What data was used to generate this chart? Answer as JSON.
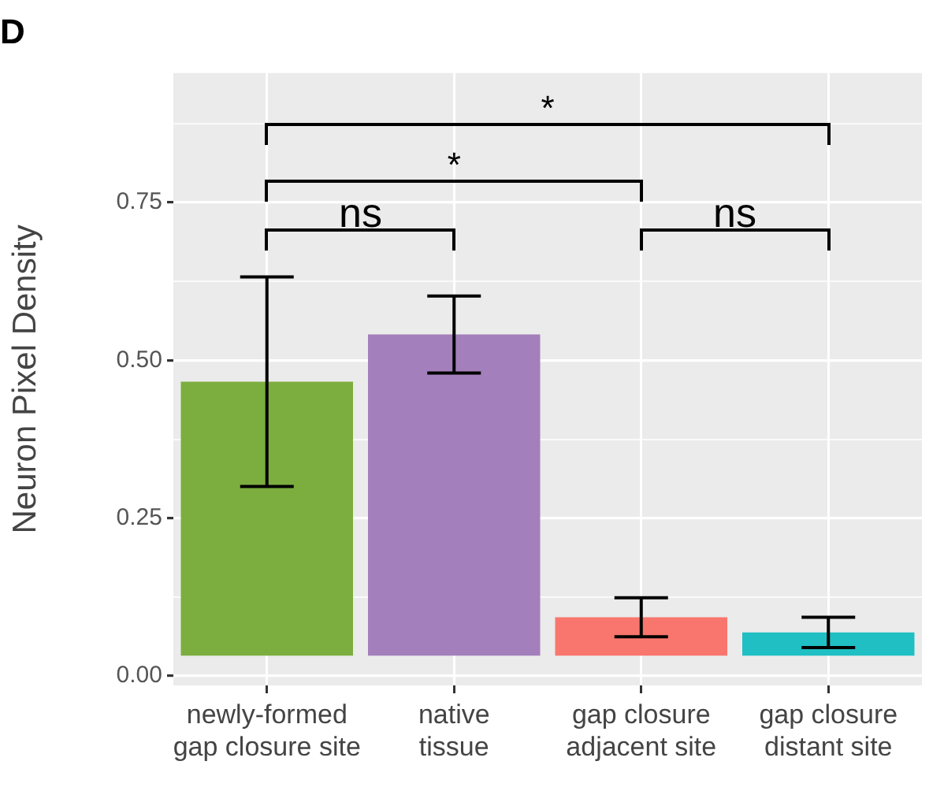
{
  "chart_data": {
    "type": "bar",
    "title": "D",
    "ylabel": "Neuron Pixel Density",
    "categories": [
      "newly-formed\ngap closure site",
      "native\ntissue",
      "gap closure\nadjacent site",
      "gap closure\ndistant site"
    ],
    "values": [
      0.434,
      0.509,
      0.061,
      0.037
    ],
    "base": [
      0.032,
      0.032,
      0.032,
      0.032
    ],
    "colors": [
      "#7cae3f",
      "#a37fbb",
      "#f8766d",
      "#1fbfc4"
    ],
    "errors": [
      0.166,
      0.061,
      0.031,
      0.024
    ],
    "ylim": [
      -0.015,
      0.955
    ],
    "yticks": [
      {
        "value": 0,
        "label": "0.00"
      },
      {
        "value": 0.125,
        "label": null
      },
      {
        "value": 0.25,
        "label": "0.25"
      },
      {
        "value": 0.375,
        "label": null
      },
      {
        "value": 0.5,
        "label": "0.50"
      },
      {
        "value": 0.625,
        "label": null
      },
      {
        "value": 0.75,
        "label": "0.75"
      },
      {
        "value": 0.875,
        "label": null
      }
    ],
    "grid": true,
    "annotations": [
      "ns",
      "*",
      "*",
      "ns"
    ]
  }
}
